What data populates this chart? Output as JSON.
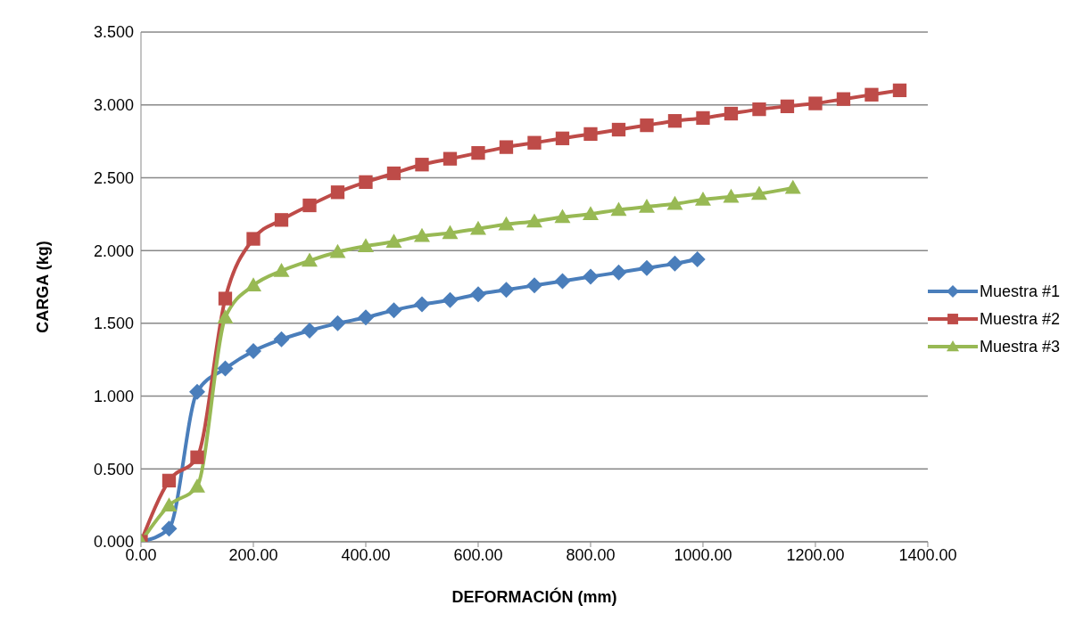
{
  "chart_data": {
    "type": "line",
    "xlabel": "DEFORMACIÓN (mm)",
    "ylabel": "CARGA (kg)",
    "xlim": [
      0,
      1400
    ],
    "xticks": [
      {
        "value": 0,
        "label": "0.00"
      },
      {
        "value": 200,
        "label": "200.00"
      },
      {
        "value": 400,
        "label": "400.00"
      },
      {
        "value": 600,
        "label": "600.00"
      },
      {
        "value": 800,
        "label": "800.00"
      },
      {
        "value": 1000,
        "label": "1000.00"
      },
      {
        "value": 1200,
        "label": "1200.00"
      },
      {
        "value": 1400,
        "label": "1400.00"
      }
    ],
    "ylim": [
      0,
      3.5
    ],
    "yticks": [
      {
        "value": 0,
        "label": "0.000"
      },
      {
        "value": 0.5,
        "label": "0.500"
      },
      {
        "value": 1,
        "label": "1.000"
      },
      {
        "value": 1.5,
        "label": "1.500"
      },
      {
        "value": 2,
        "label": "2.000"
      },
      {
        "value": 2.5,
        "label": "2.500"
      },
      {
        "value": 3,
        "label": "3.000"
      },
      {
        "value": 3.5,
        "label": "3.500"
      }
    ],
    "grid": "y",
    "legend": "right",
    "line_style": "solid",
    "series": [
      {
        "name": "Muestra #1",
        "color": "#4a7ebb",
        "marker": "diamond",
        "x": [
          0,
          50,
          100,
          150,
          200,
          250,
          300,
          350,
          400,
          450,
          500,
          550,
          600,
          650,
          700,
          750,
          800,
          850,
          900,
          950,
          990
        ],
        "values": [
          0,
          0.09,
          1.03,
          1.19,
          1.31,
          1.39,
          1.45,
          1.5,
          1.54,
          1.59,
          1.63,
          1.66,
          1.7,
          1.73,
          1.76,
          1.79,
          1.82,
          1.85,
          1.88,
          1.91,
          1.94
        ]
      },
      {
        "name": "Muestra #2",
        "color": "#be4b48",
        "marker": "square",
        "x": [
          0,
          50,
          100,
          150,
          200,
          250,
          300,
          350,
          400,
          450,
          500,
          550,
          600,
          650,
          700,
          750,
          800,
          850,
          900,
          950,
          1000,
          1050,
          1100,
          1150,
          1200,
          1250,
          1300,
          1350
        ],
        "values": [
          0,
          0.42,
          0.58,
          1.67,
          2.08,
          2.21,
          2.31,
          2.4,
          2.47,
          2.53,
          2.59,
          2.63,
          2.67,
          2.71,
          2.74,
          2.77,
          2.8,
          2.83,
          2.86,
          2.89,
          2.91,
          2.94,
          2.97,
          2.99,
          3.01,
          3.04,
          3.07,
          3.1
        ]
      },
      {
        "name": "Muestra #3",
        "color": "#98b954",
        "marker": "triangle",
        "x": [
          0,
          50,
          100,
          150,
          200,
          250,
          300,
          350,
          400,
          450,
          500,
          550,
          600,
          650,
          700,
          750,
          800,
          850,
          900,
          950,
          1000,
          1050,
          1100,
          1160
        ],
        "values": [
          0,
          0.25,
          0.38,
          1.54,
          1.76,
          1.86,
          1.93,
          1.99,
          2.03,
          2.06,
          2.1,
          2.12,
          2.15,
          2.18,
          2.2,
          2.23,
          2.25,
          2.28,
          2.3,
          2.32,
          2.35,
          2.37,
          2.39,
          2.43
        ]
      }
    ]
  }
}
